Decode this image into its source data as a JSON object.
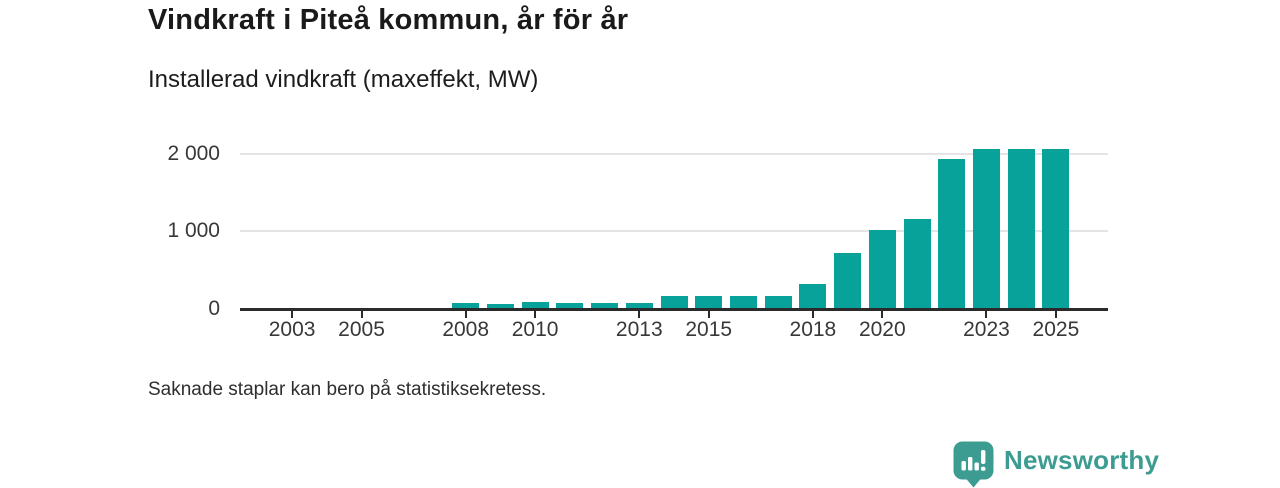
{
  "header": {
    "title": "Vindkraft i Piteå kommun, år för år",
    "subtitle": "Installerad vindkraft (maxeffekt, MW)"
  },
  "chart_data": {
    "type": "bar",
    "title": "Vindkraft i Piteå kommun, år för år",
    "subtitle": "Installerad vindkraft (maxeffekt, MW)",
    "unit": "MW",
    "x": [
      2008,
      2009,
      2010,
      2011,
      2012,
      2013,
      2014,
      2015,
      2016,
      2017,
      2018,
      2019,
      2020,
      2021,
      2022,
      2023,
      2024,
      2025
    ],
    "values": [
      65,
      55,
      85,
      75,
      75,
      70,
      165,
      165,
      160,
      165,
      320,
      720,
      1010,
      1160,
      1940,
      2070,
      2070,
      2070
    ],
    "missing_years_note": "2002-2007 have no bars shown",
    "x_tick_labels": [
      "2003",
      "2005",
      "2008",
      "2010",
      "2013",
      "2015",
      "2018",
      "2020",
      "2023",
      "2025"
    ],
    "y_ticks": [
      0,
      1000,
      2000
    ],
    "y_tick_labels": [
      "0",
      "1 000",
      "2 000"
    ],
    "xlim": [
      2001.5,
      2026.5
    ],
    "ylim": [
      0,
      2150
    ],
    "grid": true,
    "legend": false,
    "bar_color": "#09a29b",
    "axis_color": "#2b2b2b",
    "grid_color": "#e4e4e4"
  },
  "footnote": "Saknade staplar kan bero på statistiksekretess.",
  "branding": {
    "name": "Newsworthy",
    "color": "#3d9c92",
    "icon": "newsworthy-chart-bubble-icon"
  }
}
